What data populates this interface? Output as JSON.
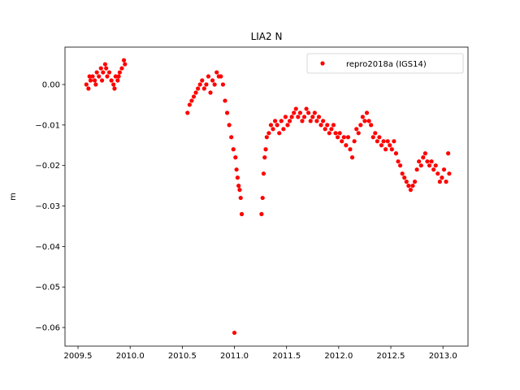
{
  "chart_data": {
    "type": "scatter",
    "title": "LIA2 N",
    "y_label": "m",
    "xlim": [
      2009.375,
      2013.24
    ],
    "ylim": [
      -0.0646,
      0.00923
    ],
    "xticks": [
      {
        "value": 2009.5,
        "label": "2009.5"
      },
      {
        "value": 2010.0,
        "label": "2010.0"
      },
      {
        "value": 2010.5,
        "label": "2010.5"
      },
      {
        "value": 2011.0,
        "label": "2011.0"
      },
      {
        "value": 2011.5,
        "label": "2011.5"
      },
      {
        "value": 2012.0,
        "label": "2012.0"
      },
      {
        "value": 2012.5,
        "label": "2012.5"
      },
      {
        "value": 2013.0,
        "label": "2013.0"
      }
    ],
    "yticks": [
      {
        "value": 0,
        "label": "0.00"
      },
      {
        "value": -0.01,
        "label": "−0.01"
      },
      {
        "value": -0.02,
        "label": "−0.02"
      },
      {
        "value": -0.03,
        "label": "−0.03"
      },
      {
        "value": -0.04,
        "label": "−0.04"
      },
      {
        "value": -0.05,
        "label": "−0.05"
      },
      {
        "value": -0.06,
        "label": "−0.06"
      }
    ],
    "grid": false,
    "legend": "upper right",
    "series": [
      {
        "name": "repro2018a (IGS14)",
        "color": "#ff0000",
        "x": [
          2009.58,
          2009.6,
          2009.62,
          2009.64,
          2009.66,
          2009.68,
          2009.7,
          2009.72,
          2009.74,
          2009.76,
          2009.78,
          2009.8,
          2009.82,
          2009.84,
          2009.86,
          2009.88,
          2009.9,
          2009.92,
          2009.94,
          2009.95,
          2009.61,
          2009.67,
          2009.73,
          2009.77,
          2009.85,
          2009.89,
          2010.55,
          2010.57,
          2010.59,
          2010.61,
          2010.63,
          2010.65,
          2010.67,
          2010.69,
          2010.71,
          2010.73,
          2010.75,
          2010.77,
          2010.79,
          2010.81,
          2010.83,
          2010.85,
          2010.87,
          2010.89,
          2010.91,
          2010.93,
          2010.95,
          2010.97,
          2010.99,
          2011.01,
          2011.02,
          2011.03,
          2011.04,
          2011.05,
          2011.06,
          2011.07,
          2011.0,
          2011.26,
          2011.27,
          2011.28,
          2011.29,
          2011.3,
          2011.31,
          2011.33,
          2011.35,
          2011.37,
          2011.39,
          2011.41,
          2011.43,
          2011.45,
          2011.47,
          2011.49,
          2011.51,
          2011.53,
          2011.55,
          2011.57,
          2011.59,
          2011.61,
          2011.63,
          2011.65,
          2011.67,
          2011.69,
          2011.71,
          2011.73,
          2011.75,
          2011.77,
          2011.79,
          2011.81,
          2011.83,
          2011.85,
          2011.87,
          2011.89,
          2011.91,
          2011.93,
          2011.95,
          2011.97,
          2011.99,
          2012.01,
          2012.03,
          2012.05,
          2012.07,
          2012.09,
          2012.11,
          2012.13,
          2012.15,
          2012.17,
          2012.19,
          2012.21,
          2012.23,
          2012.25,
          2012.27,
          2012.29,
          2012.31,
          2012.33,
          2012.35,
          2012.37,
          2012.39,
          2012.41,
          2012.43,
          2012.45,
          2012.47,
          2012.49,
          2012.51,
          2012.53,
          2012.55,
          2012.57,
          2012.59,
          2012.61,
          2012.63,
          2012.65,
          2012.67,
          2012.69,
          2012.71,
          2012.73,
          2012.75,
          2012.77,
          2012.79,
          2012.81,
          2012.83,
          2012.85,
          2012.87,
          2012.89,
          2012.91,
          2012.93,
          2012.95,
          2012.97,
          2012.99,
          2013.01,
          2013.03,
          2013.05,
          2013.06
        ],
        "values": [
          0.0,
          -0.001,
          0.001,
          0.002,
          0.001,
          0.003,
          0.002,
          0.004,
          0.003,
          0.005,
          0.002,
          0.003,
          0.001,
          0.0,
          0.002,
          0.001,
          0.003,
          0.004,
          0.006,
          0.005,
          0.002,
          0.0,
          0.001,
          0.004,
          -0.001,
          0.002,
          -0.007,
          -0.005,
          -0.004,
          -0.003,
          -0.002,
          -0.001,
          0.0,
          0.001,
          -0.001,
          0.0,
          0.002,
          -0.002,
          0.001,
          0.0,
          0.003,
          0.002,
          0.002,
          0.0,
          -0.004,
          -0.007,
          -0.01,
          -0.013,
          -0.016,
          -0.018,
          -0.021,
          -0.023,
          -0.025,
          -0.026,
          -0.028,
          -0.032,
          -0.0613,
          -0.032,
          -0.028,
          -0.022,
          -0.018,
          -0.016,
          -0.013,
          -0.012,
          -0.01,
          -0.011,
          -0.009,
          -0.01,
          -0.012,
          -0.009,
          -0.011,
          -0.008,
          -0.01,
          -0.009,
          -0.008,
          -0.007,
          -0.006,
          -0.008,
          -0.007,
          -0.009,
          -0.008,
          -0.006,
          -0.007,
          -0.009,
          -0.008,
          -0.007,
          -0.009,
          -0.008,
          -0.01,
          -0.009,
          -0.011,
          -0.01,
          -0.012,
          -0.011,
          -0.01,
          -0.012,
          -0.013,
          -0.012,
          -0.014,
          -0.013,
          -0.015,
          -0.013,
          -0.016,
          -0.018,
          -0.014,
          -0.011,
          -0.012,
          -0.01,
          -0.008,
          -0.009,
          -0.007,
          -0.009,
          -0.01,
          -0.013,
          -0.012,
          -0.014,
          -0.013,
          -0.015,
          -0.014,
          -0.016,
          -0.014,
          -0.015,
          -0.016,
          -0.014,
          -0.017,
          -0.019,
          -0.02,
          -0.022,
          -0.023,
          -0.024,
          -0.025,
          -0.026,
          -0.025,
          -0.024,
          -0.021,
          -0.019,
          -0.02,
          -0.018,
          -0.017,
          -0.019,
          -0.02,
          -0.019,
          -0.021,
          -0.02,
          -0.022,
          -0.024,
          -0.023,
          -0.021,
          -0.024,
          -0.017,
          -0.022
        ]
      }
    ]
  }
}
